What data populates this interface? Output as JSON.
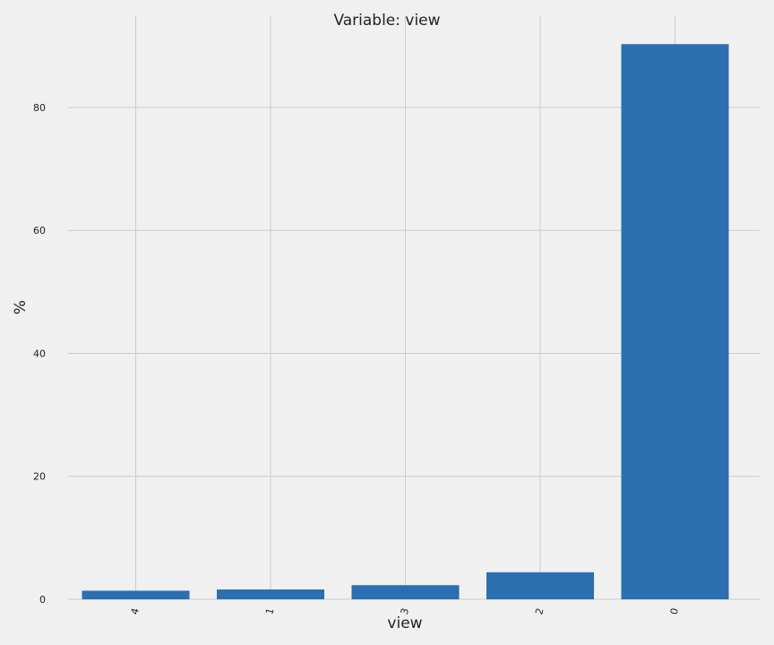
{
  "chart_data": {
    "type": "bar",
    "title": "Variable: view",
    "xlabel": "view",
    "ylabel": "%",
    "categories": [
      "4",
      "1",
      "3",
      "2",
      "0"
    ],
    "values": [
      1.4,
      1.6,
      2.3,
      4.4,
      90.3
    ],
    "ylim": [
      0,
      95
    ],
    "yticks": [
      0,
      20,
      40,
      60,
      80
    ],
    "grid": true,
    "bar_color": "#2b6fb1",
    "background_color": "#f0f0f0"
  }
}
